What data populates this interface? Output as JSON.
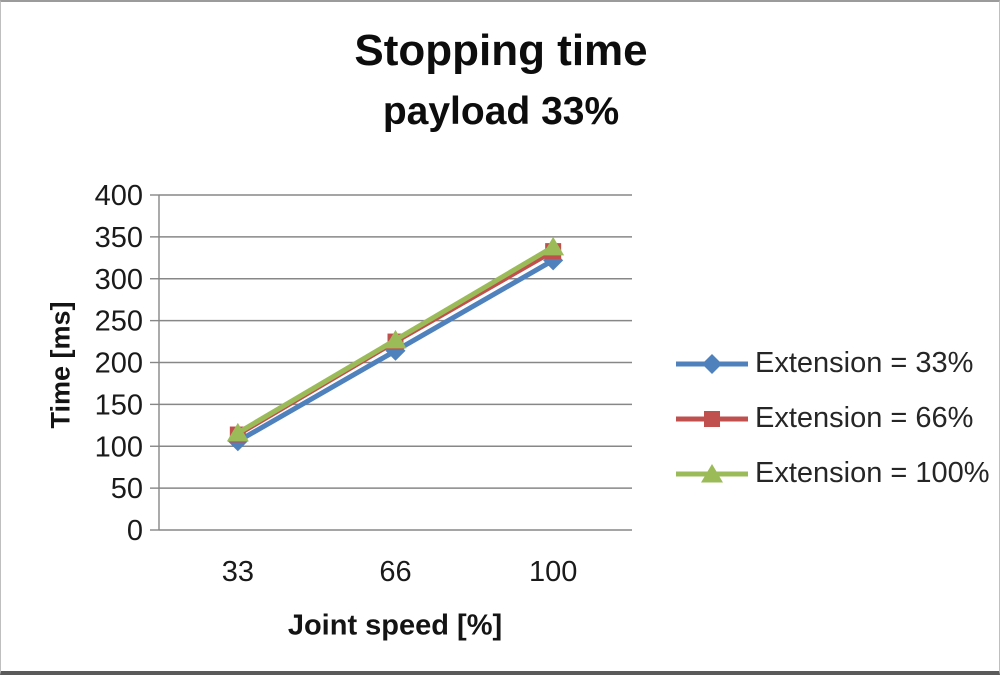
{
  "chart_data": {
    "type": "line",
    "title": "Stopping time",
    "subtitle": "payload 33%",
    "xlabel": "Joint speed [%]",
    "ylabel": "Time [ms]",
    "categories": [
      "33",
      "66",
      "100"
    ],
    "series": [
      {
        "name": "Extension = 33%",
        "color": "#4F81BD",
        "marker": "diamond",
        "values": [
          106,
          214,
          322
        ]
      },
      {
        "name": "Extension = 66%",
        "color": "#C0504D",
        "marker": "square",
        "values": [
          114,
          225,
          333
        ]
      },
      {
        "name": "Extension = 100%",
        "color": "#9BBB59",
        "marker": "triangle",
        "values": [
          116,
          227,
          338
        ]
      }
    ],
    "ylim": [
      0,
      400
    ],
    "ytick_step": 50,
    "ytick_labels": [
      "0",
      "50",
      "100",
      "150",
      "200",
      "250",
      "300",
      "350",
      "400"
    ],
    "grid": true,
    "legend_position": "right"
  },
  "styles": {
    "grid_color": "#878787",
    "axis_color": "#878787",
    "tick_text_color": "#1a1a1a",
    "title_color": "#0d0d0d",
    "legend_text_color": "#262626",
    "background": "#ffffff"
  }
}
